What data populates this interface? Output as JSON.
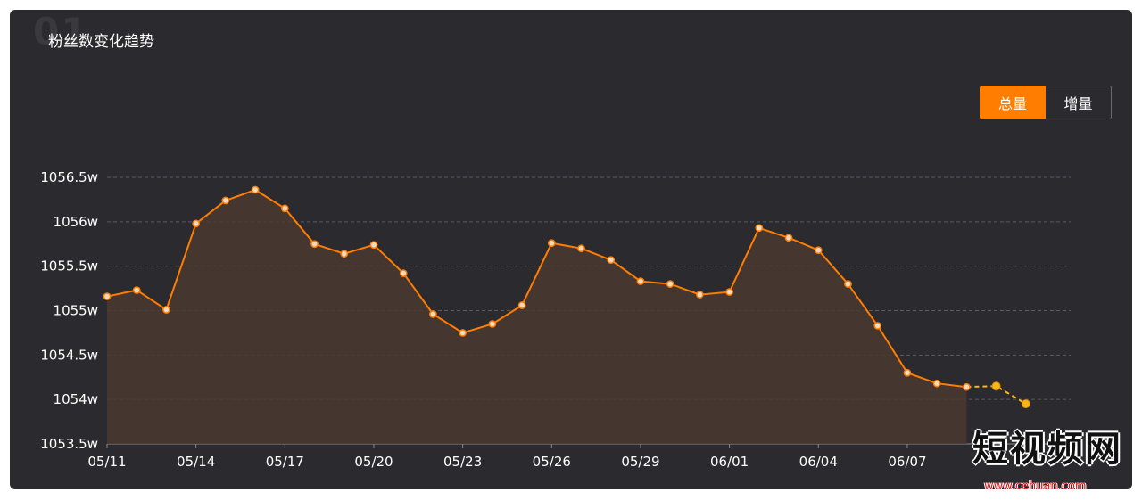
{
  "panel": {
    "bg_number": "01",
    "title": "粉丝数变化趋势"
  },
  "toggle": {
    "options": [
      "总量",
      "增量"
    ],
    "selected": "总量"
  },
  "colors": {
    "panel_bg": "#2b2a2f",
    "line": "#ff7d00",
    "area_fill": "#4a3a30",
    "prediction": "#ffb31a",
    "grid": "#5a5960",
    "tick_text": "#ffffff",
    "toggle_active": "#ff7d00"
  },
  "chart_data": {
    "type": "line",
    "title": "粉丝数变化趋势",
    "xlabel": "",
    "ylabel": "",
    "y_ticks": [
      "1053.5w",
      "1054w",
      "1054.5w",
      "1055w",
      "1055.5w",
      "1056w",
      "1056.5w"
    ],
    "ylim": [
      1053.5,
      1056.5
    ],
    "x_tick_labels": [
      "05/11",
      "05/14",
      "05/17",
      "05/20",
      "05/23",
      "05/26",
      "05/29",
      "06/01",
      "06/04",
      "06/07"
    ],
    "grid": true,
    "area_fill": true,
    "x": [
      "05/11",
      "05/12",
      "05/13",
      "05/14",
      "05/15",
      "05/16",
      "05/17",
      "05/18",
      "05/19",
      "05/20",
      "05/21",
      "05/22",
      "05/23",
      "05/24",
      "05/25",
      "05/26",
      "05/27",
      "05/28",
      "05/29",
      "05/30",
      "05/31",
      "06/01",
      "06/02",
      "06/03",
      "06/04",
      "06/05",
      "06/06",
      "06/07",
      "06/08",
      "06/09"
    ],
    "series": [
      {
        "values": [
          1055.16,
          1055.23,
          1055.01,
          1055.98,
          1056.24,
          1056.36,
          1056.15,
          1055.75,
          1055.64,
          1055.74,
          1055.42,
          1054.96,
          1054.75,
          1054.85,
          1055.06,
          1055.76,
          1055.7,
          1055.57,
          1055.33,
          1055.3,
          1055.18,
          1055.21,
          1055.93,
          1055.82,
          1055.68,
          1055.3,
          1054.83,
          1054.3,
          1054.18,
          1054.14
        ]
      }
    ],
    "prediction": {
      "style": "dashed",
      "x": [
        "06/09",
        "06/10",
        "06/11"
      ],
      "values": [
        1054.14,
        1054.15,
        1053.95
      ]
    }
  },
  "watermark": {
    "main": "短视频网",
    "url": "www.cehuan.com"
  }
}
